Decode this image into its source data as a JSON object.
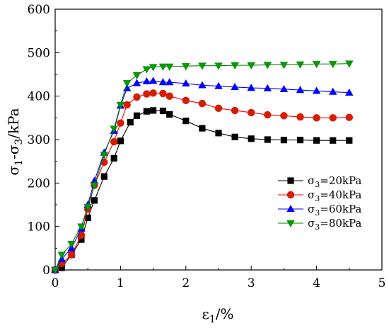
{
  "chart_data": {
    "type": "line",
    "title": "",
    "xlabel_main": "ε",
    "xlabel_sub": "1",
    "xlabel_rest": "/%",
    "ylabel_parts": [
      {
        "t": "σ",
        "sub": false
      },
      {
        "t": "1",
        "sub": true
      },
      {
        "t": "-σ",
        "sub": false
      },
      {
        "t": "3",
        "sub": true
      },
      {
        "t": "/kPa",
        "sub": false
      }
    ],
    "xlim": [
      0,
      5
    ],
    "ylim": [
      0,
      600
    ],
    "xticks": [
      "0",
      "1",
      "2",
      "3",
      "4",
      "5"
    ],
    "yticks": [
      "0",
      "100",
      "200",
      "300",
      "400",
      "500",
      "600"
    ],
    "grid": false,
    "legend_position": "right",
    "series": [
      {
        "name_prefix": "σ",
        "name_sub": "3",
        "name_suffix": "=20kPa",
        "marker": "square",
        "color": "#000000",
        "fill": "#000000",
        "x": [
          0,
          0.1,
          0.25,
          0.4,
          0.5,
          0.6,
          0.75,
          0.9,
          1.0,
          1.15,
          1.25,
          1.4,
          1.5,
          1.65,
          1.75,
          2.0,
          2.25,
          2.5,
          2.75,
          3.0,
          3.25,
          3.5,
          3.75,
          4.0,
          4.25,
          4.5
        ],
        "y": [
          0,
          5,
          35,
          70,
          120,
          160,
          215,
          257,
          297,
          340,
          355,
          365,
          367,
          366,
          358,
          343,
          326,
          315,
          306,
          302,
          300,
          299,
          299,
          298,
          298,
          298
        ]
      },
      {
        "name_prefix": "σ",
        "name_sub": "3",
        "name_suffix": "=40kPa",
        "marker": "circle",
        "color": "#ff0000",
        "fill": "#cc2200",
        "x": [
          0,
          0.1,
          0.25,
          0.4,
          0.5,
          0.6,
          0.75,
          0.9,
          1.0,
          1.1,
          1.25,
          1.4,
          1.5,
          1.65,
          1.75,
          2.0,
          2.25,
          2.5,
          2.75,
          3.0,
          3.25,
          3.5,
          3.75,
          4.0,
          4.25,
          4.5
        ],
        "y": [
          0,
          15,
          35,
          80,
          140,
          195,
          248,
          295,
          338,
          380,
          398,
          405,
          407,
          406,
          400,
          390,
          383,
          372,
          367,
          362,
          357,
          355,
          352,
          350,
          350,
          351
        ]
      },
      {
        "name_prefix": "σ",
        "name_sub": "3",
        "name_suffix": "=60kPa",
        "marker": "triangle-up",
        "color": "#0000ff",
        "fill": "#0000ff",
        "x": [
          0,
          0.1,
          0.25,
          0.4,
          0.5,
          0.6,
          0.75,
          0.9,
          1.0,
          1.1,
          1.25,
          1.4,
          1.5,
          1.65,
          1.75,
          2.0,
          2.25,
          2.5,
          2.75,
          3.0,
          3.25,
          3.5,
          3.75,
          4.0,
          4.25,
          4.5
        ],
        "y": [
          0,
          25,
          50,
          95,
          150,
          205,
          270,
          320,
          378,
          418,
          430,
          434,
          435,
          432,
          432,
          429,
          425,
          423,
          421,
          419,
          418,
          416,
          414,
          412,
          410,
          408
        ]
      },
      {
        "name_prefix": "σ",
        "name_sub": "3",
        "name_suffix": "=80kPa",
        "marker": "triangle-down",
        "color": "#008000",
        "fill": "#00a000",
        "x": [
          0,
          0.1,
          0.25,
          0.4,
          0.5,
          0.6,
          0.75,
          0.9,
          1.0,
          1.1,
          1.25,
          1.4,
          1.5,
          1.65,
          1.75,
          2.0,
          2.25,
          2.5,
          2.75,
          3.0,
          3.25,
          3.5,
          3.75,
          4.0,
          4.25,
          4.5
        ],
        "y": [
          0,
          35,
          60,
          100,
          145,
          195,
          265,
          325,
          380,
          430,
          448,
          462,
          467,
          468,
          468,
          469,
          470,
          470,
          471,
          471,
          472,
          472,
          473,
          474,
          474,
          475
        ]
      }
    ]
  }
}
